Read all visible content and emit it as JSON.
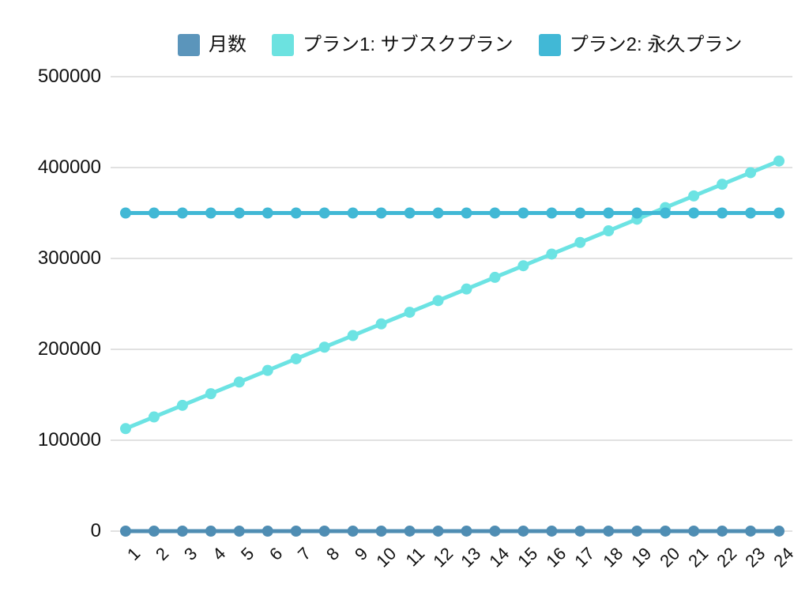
{
  "legend": {
    "items": [
      {
        "key": "months",
        "label": "月数",
        "color": "#5b95bb"
      },
      {
        "key": "plan1",
        "label": "プラン1: サブスクプラン",
        "color": "#6ce2e0"
      },
      {
        "key": "plan2",
        "label": "プラン2: 永久プラン",
        "color": "#41b8d6"
      }
    ]
  },
  "chart_data": {
    "type": "line",
    "title": "",
    "xlabel": "",
    "ylabel": "",
    "x": [
      1,
      2,
      3,
      4,
      5,
      6,
      7,
      8,
      9,
      10,
      11,
      12,
      13,
      14,
      15,
      16,
      17,
      18,
      19,
      20,
      21,
      22,
      23,
      24
    ],
    "xticks": [
      "1",
      "2",
      "3",
      "4",
      "5",
      "6",
      "7",
      "8",
      "9",
      "10",
      "11",
      "12",
      "13",
      "14",
      "15",
      "16",
      "17",
      "18",
      "19",
      "20",
      "21",
      "22",
      "23",
      "24"
    ],
    "yticks": [
      0,
      100000,
      200000,
      300000,
      400000,
      500000
    ],
    "ylim": [
      0,
      500000
    ],
    "grid": "horizontal",
    "gridline_color": "#d7d7d7",
    "legend_position": "top",
    "marker": "circle",
    "series": [
      {
        "key": "months",
        "name": "月数",
        "color": "#4f8db3",
        "values": [
          1,
          2,
          3,
          4,
          5,
          6,
          7,
          8,
          9,
          10,
          11,
          12,
          13,
          14,
          15,
          16,
          17,
          18,
          19,
          20,
          21,
          22,
          23,
          24
        ]
      },
      {
        "key": "plan1",
        "name": "プラン1: サブスクプラン",
        "color": "#6ce3e3",
        "values": [
          112800,
          125600,
          138400,
          151200,
          164000,
          176800,
          189600,
          202400,
          215200,
          228000,
          240800,
          253600,
          266400,
          279200,
          292000,
          304800,
          317600,
          330400,
          343200,
          356000,
          368800,
          381600,
          394400,
          407200
        ]
      },
      {
        "key": "plan2",
        "name": "プラン2: 永久プラン",
        "color": "#41b8d5",
        "values": [
          350000,
          350000,
          350000,
          350000,
          350000,
          350000,
          350000,
          350000,
          350000,
          350000,
          350000,
          350000,
          350000,
          350000,
          350000,
          350000,
          350000,
          350000,
          350000,
          350000,
          350000,
          350000,
          350000,
          350000
        ]
      }
    ]
  }
}
